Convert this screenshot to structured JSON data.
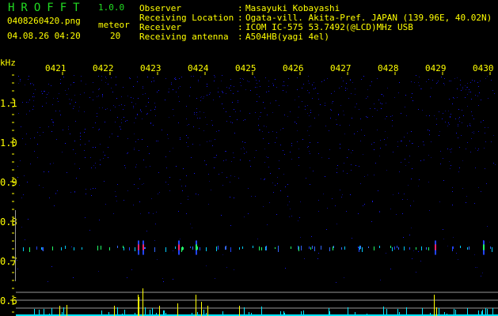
{
  "header": {
    "app_name": "HROFFT",
    "version": "1.0.0",
    "filename": "0408260420.png",
    "datetime": "04.08.26 04:20",
    "meteor_label": "meteor",
    "meteor_count": "20",
    "info": [
      {
        "label": "Observer",
        "value": "Masayuki Kobayashi"
      },
      {
        "label": "Receiving Location",
        "value": "Ogata-vill. Akita-Pref. JAPAN (139.96E, 40.02N)"
      },
      {
        "label": "Receiver",
        "value": "ICOM IC-575 53.7492(@LCD)MHz USB"
      },
      {
        "label": "Receiving antenna",
        "value": "A504HB(yagi 4el)"
      }
    ]
  },
  "chart_data": {
    "type": "heatmap",
    "ylabel": "kHz",
    "y_ticks": [
      "1.1",
      "1.0",
      "0.9",
      "0.8",
      "0.7",
      "0.6"
    ],
    "x_ticks": [
      "0421",
      "0422",
      "0423",
      "0424",
      "0425",
      "0426",
      "0427",
      "0428",
      "0429",
      "0430"
    ],
    "ylim": [
      0.6,
      1.19
    ],
    "echo_band_khz": 0.735,
    "colors": {
      "text": "#ffff00",
      "logo": "#22dd22",
      "noise": "#1a1aff",
      "echo_bar": "#ffff00",
      "baseline_bar": "#00e5ff"
    }
  }
}
